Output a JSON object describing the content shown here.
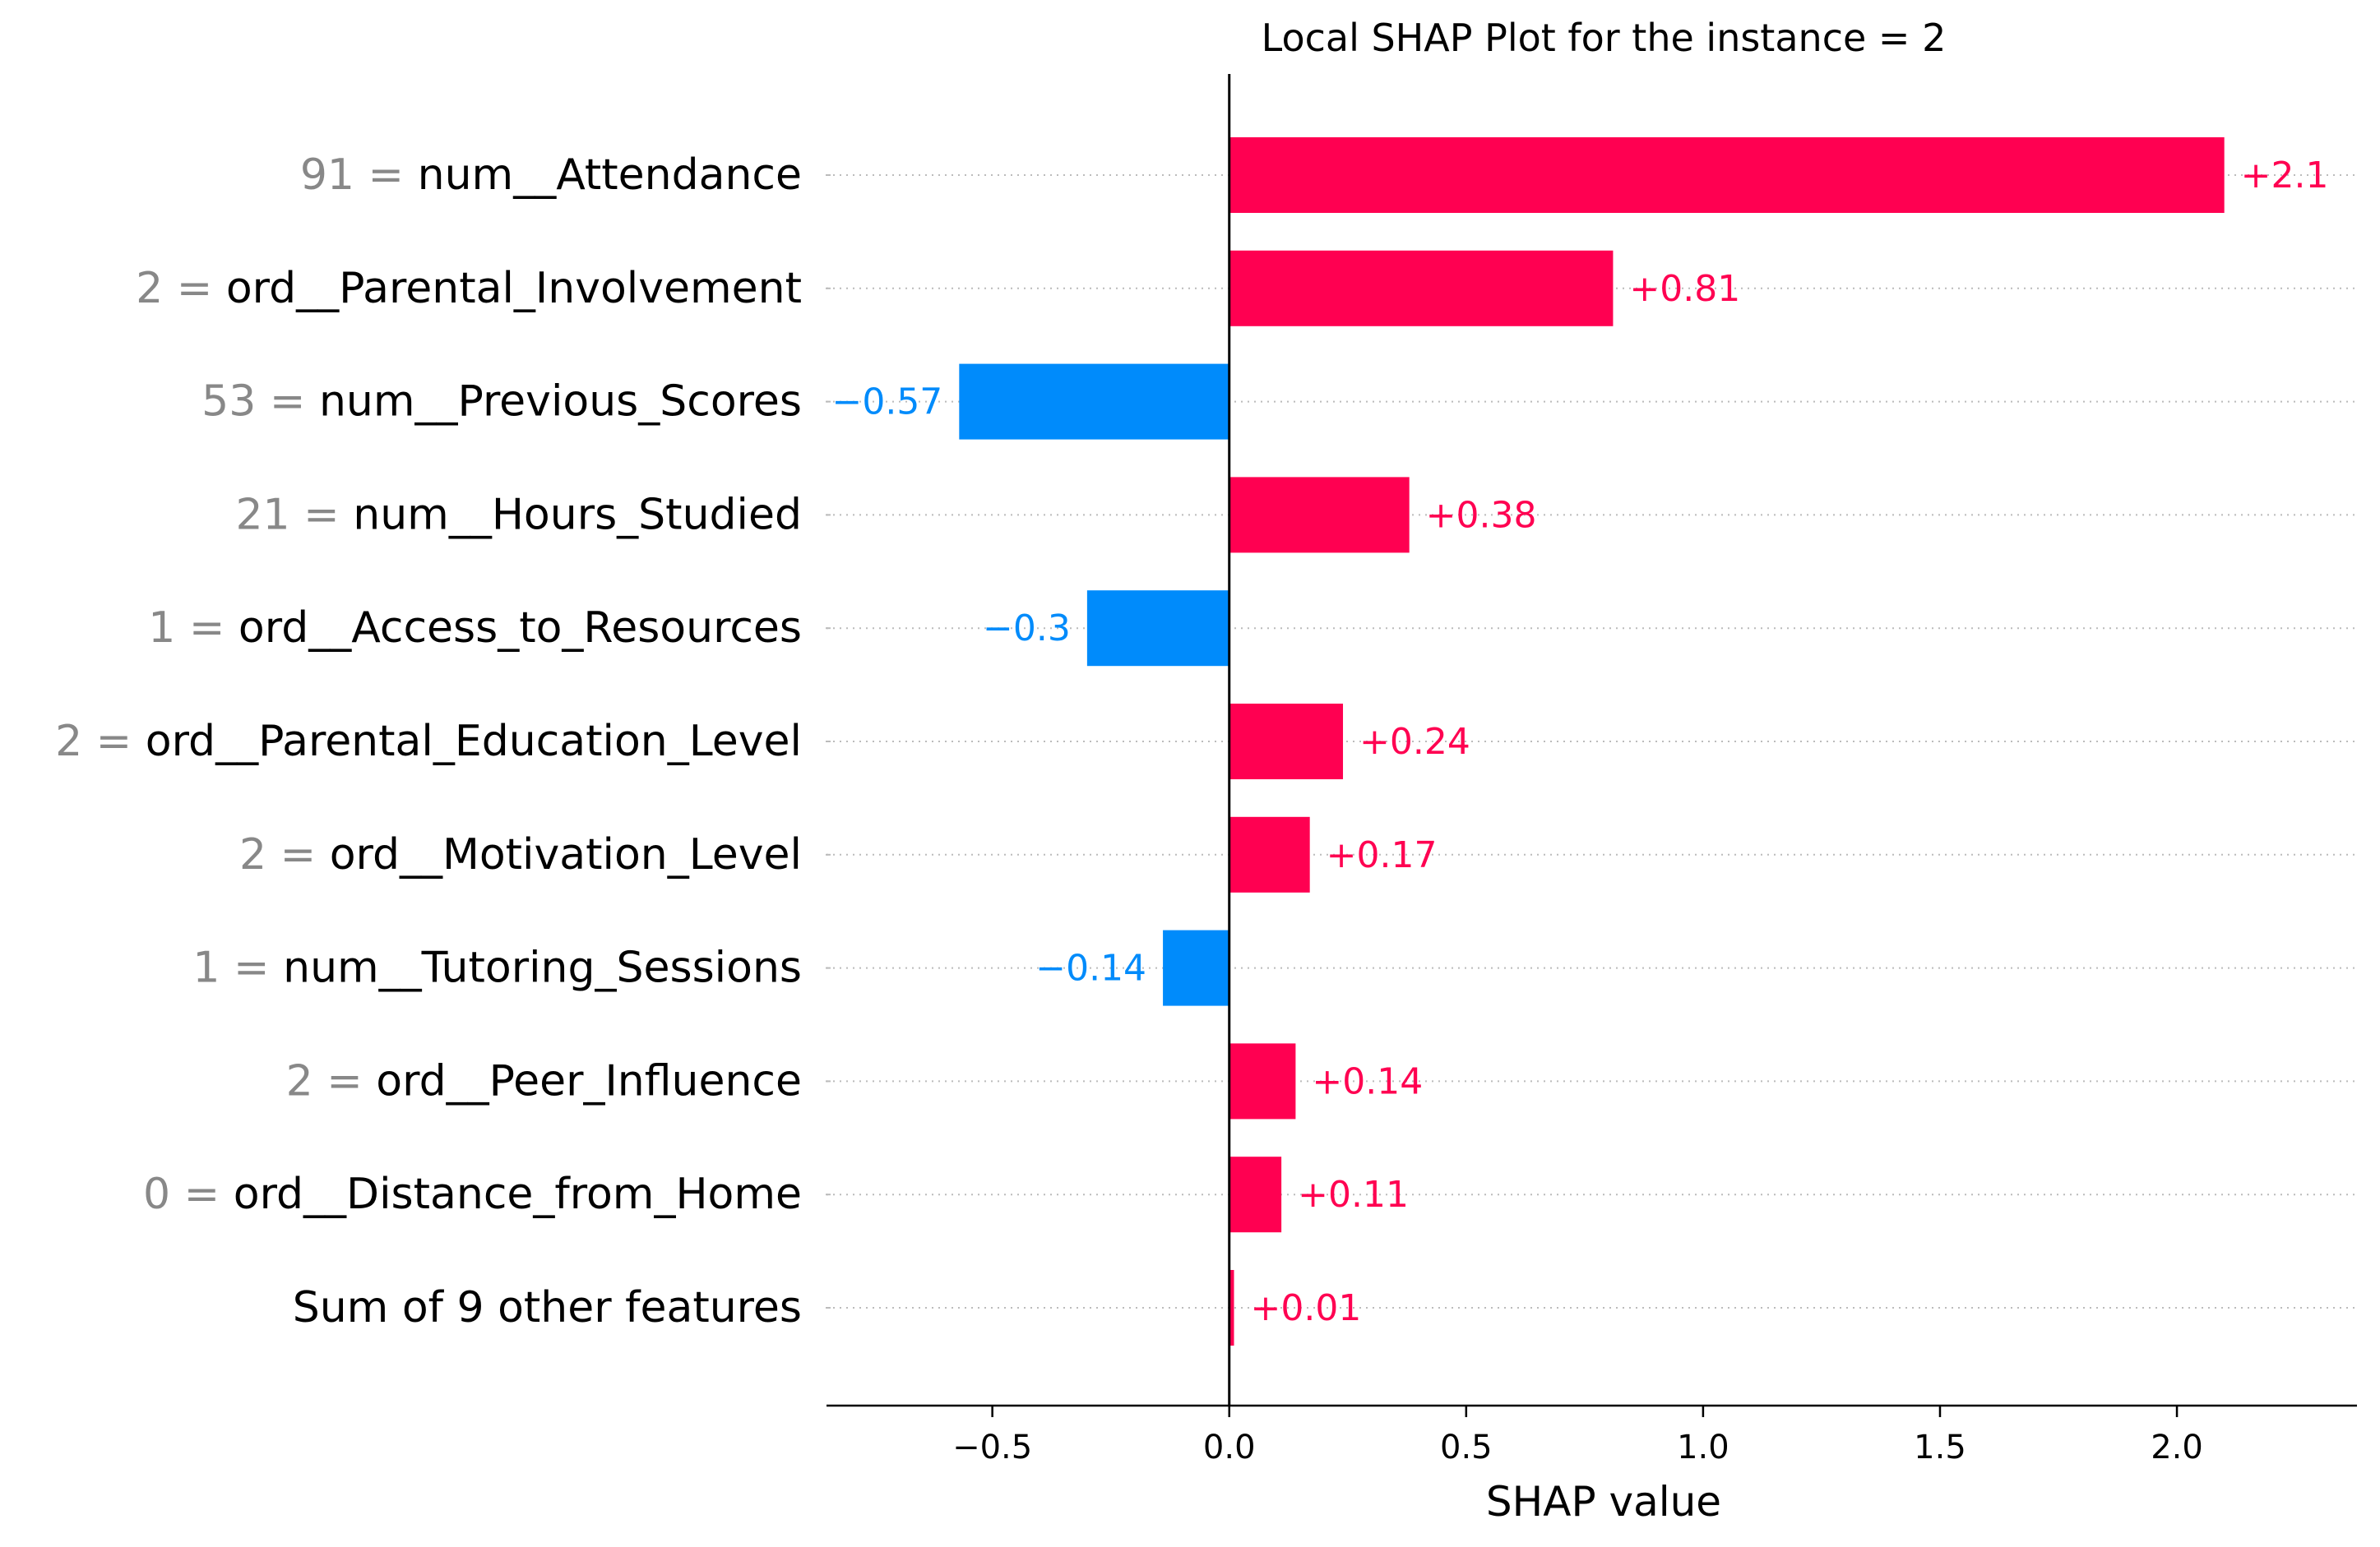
{
  "chart_data": {
    "type": "bar",
    "orientation": "horizontal",
    "title": "Local SHAP Plot for the instance = 2",
    "xlabel": "SHAP value",
    "ylabel": "",
    "xlim": [
      -0.85,
      2.38
    ],
    "xticks": [
      -0.5,
      0.0,
      0.5,
      1.0,
      1.5,
      2.0
    ],
    "xtick_labels": [
      "−0.5",
      "0.0",
      "0.5",
      "1.0",
      "1.5",
      "2.0"
    ],
    "grid": "horizontal dotted guide lines per row",
    "colors": {
      "positive": "#ff0051",
      "negative": "#008bfb",
      "feature_value": "#888888",
      "feature_name": "#000000",
      "axis": "#000000"
    },
    "rows": [
      {
        "feature_value": "91",
        "feature": "num__Attendance",
        "value": 2.1,
        "label": "+2.1"
      },
      {
        "feature_value": "2",
        "feature": "ord__Parental_Involvement",
        "value": 0.81,
        "label": "+0.81"
      },
      {
        "feature_value": "53",
        "feature": "num__Previous_Scores",
        "value": -0.57,
        "label": "−0.57"
      },
      {
        "feature_value": "21",
        "feature": "num__Hours_Studied",
        "value": 0.38,
        "label": "+0.38"
      },
      {
        "feature_value": "1",
        "feature": "ord__Access_to_Resources",
        "value": -0.3,
        "label": "−0.3"
      },
      {
        "feature_value": "2",
        "feature": "ord__Parental_Education_Level",
        "value": 0.24,
        "label": "+0.24"
      },
      {
        "feature_value": "2",
        "feature": "ord__Motivation_Level",
        "value": 0.17,
        "label": "+0.17"
      },
      {
        "feature_value": "1",
        "feature": "num__Tutoring_Sessions",
        "value": -0.14,
        "label": "−0.14"
      },
      {
        "feature_value": "2",
        "feature": "ord__Peer_Influence",
        "value": 0.14,
        "label": "+0.14"
      },
      {
        "feature_value": "0",
        "feature": "ord__Distance_from_Home",
        "value": 0.11,
        "label": "+0.11"
      },
      {
        "feature_value": "",
        "feature": "Sum of 9 other features",
        "value": 0.01,
        "label": "+0.01"
      }
    ]
  }
}
